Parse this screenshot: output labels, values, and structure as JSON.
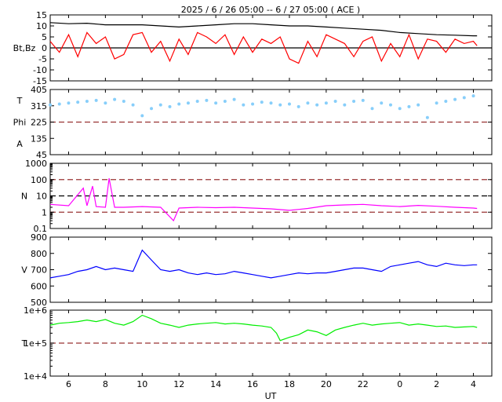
{
  "chart_data": {
    "type": "line",
    "title": "2025  /  6 / 26   05:00 -- 6 / 27   05:00 ( ACE )",
    "xlabel": "UT",
    "x_ticks": [
      "6",
      "8",
      "10",
      "12",
      "14",
      "16",
      "18",
      "20",
      "22",
      "0",
      "2",
      "4"
    ],
    "x_tick_hours": [
      6,
      8,
      10,
      12,
      14,
      16,
      18,
      20,
      22,
      24,
      26,
      28
    ],
    "x_range_hours": [
      5,
      29
    ],
    "panels": [
      {
        "id": "mag",
        "ylabel": "Bt,Bz",
        "scale": "linear",
        "ylim": [
          -15,
          15
        ],
        "y_ticks": [
          "15",
          "10",
          "5",
          "0",
          "-5",
          "-10",
          "-15"
        ],
        "y_tick_values": [
          15,
          10,
          5,
          0,
          -5,
          -10,
          -15
        ],
        "reference_lines": [
          {
            "y": 0,
            "style": "solid",
            "color": "#000000"
          }
        ],
        "series": [
          {
            "name": "Bt",
            "color": "#000000",
            "x": [
              5,
              6,
              7,
              8,
              9,
              10,
              11,
              12,
              13,
              14,
              15,
              16,
              17,
              18,
              19,
              20,
              21,
              22,
              23,
              24,
              25,
              26,
              27,
              28,
              28.2
            ],
            "y": [
              11.5,
              11,
              11.2,
              10.5,
              10.5,
              10.5,
              10,
              9.5,
              10,
              10.5,
              11,
              11,
              10.5,
              10,
              10,
              9.5,
              9,
              8.5,
              8,
              7,
              6.5,
              6,
              5.8,
              5.5,
              5.5
            ]
          },
          {
            "name": "Bz",
            "color": "#ff0000",
            "x": [
              5,
              5.5,
              6,
              6.5,
              7,
              7.5,
              8,
              8.5,
              9,
              9.5,
              10,
              10.5,
              11,
              11.5,
              12,
              12.5,
              13,
              13.5,
              14,
              14.5,
              15,
              15.5,
              16,
              16.5,
              17,
              17.5,
              18,
              18.5,
              19,
              19.5,
              20,
              20.5,
              21,
              21.5,
              22,
              22.5,
              23,
              23.5,
              24,
              24.5,
              25,
              25.5,
              26,
              26.5,
              27,
              27.5,
              28,
              28.2
            ],
            "y": [
              3,
              -2,
              6,
              -4,
              7,
              2,
              5,
              -5,
              -3,
              6,
              7,
              -2,
              3,
              -6,
              4,
              -3,
              7,
              5,
              2,
              6,
              -3,
              5,
              -2,
              4,
              2,
              5,
              -5,
              -7,
              3,
              -4,
              6,
              4,
              2,
              -4,
              3,
              5,
              -6,
              2,
              -4,
              6,
              -5,
              4,
              3,
              -2,
              4,
              2,
              3,
              1
            ]
          }
        ]
      },
      {
        "id": "phi",
        "ylabel_lines": [
          "T",
          "Phi",
          "A"
        ],
        "scale": "linear",
        "ylim": [
          45,
          405
        ],
        "y_ticks": [
          "405",
          "315",
          "225",
          "135",
          "45"
        ],
        "y_tick_values": [
          405,
          315,
          225,
          135,
          45
        ],
        "reference_lines": [
          {
            "y": 225,
            "style": "dashed",
            "color": "#993333"
          }
        ],
        "series": [
          {
            "name": "Phi",
            "color": "#87cefa",
            "marker": "dot",
            "x": [
              5,
              5.5,
              6,
              6.5,
              7,
              7.5,
              8,
              8.5,
              9,
              9.5,
              10,
              10.5,
              11,
              11.5,
              12,
              12.5,
              13,
              13.5,
              14,
              14.5,
              15,
              15.5,
              16,
              16.5,
              17,
              17.5,
              18,
              18.5,
              19,
              19.5,
              20,
              20.5,
              21,
              21.5,
              22,
              22.5,
              23,
              23.5,
              24,
              24.5,
              25,
              25.5,
              26,
              26.5,
              27,
              27.5,
              28
            ],
            "y": [
              320,
              325,
              330,
              335,
              340,
              345,
              330,
              350,
              340,
              320,
              260,
              300,
              320,
              310,
              325,
              330,
              340,
              345,
              330,
              340,
              350,
              320,
              325,
              335,
              330,
              320,
              325,
              310,
              330,
              320,
              330,
              340,
              320,
              340,
              345,
              300,
              330,
              320,
              300,
              310,
              320,
              250,
              330,
              340,
              350,
              360,
              370
            ]
          }
        ]
      },
      {
        "id": "density",
        "ylabel": "N",
        "scale": "log",
        "ylim": [
          0.1,
          1000
        ],
        "y_ticks": [
          "1000",
          "100",
          "10",
          "1",
          "0.1"
        ],
        "y_tick_values": [
          1000,
          100,
          10,
          1,
          0.1
        ],
        "reference_lines": [
          {
            "y": 100,
            "style": "dashed",
            "color": "#993333"
          },
          {
            "y": 10,
            "style": "dashed",
            "color": "#000000"
          },
          {
            "y": 1,
            "style": "dashed",
            "color": "#993333"
          }
        ],
        "series": [
          {
            "name": "N",
            "color": "#ff00ff",
            "x": [
              5,
              6,
              6.8,
              7,
              7.3,
              7.5,
              8,
              8.2,
              8.5,
              9,
              10,
              11,
              11.7,
              12,
              13,
              14,
              15,
              16,
              17,
              18,
              19,
              20,
              21,
              22,
              23,
              24,
              25,
              26,
              27,
              28,
              28.2
            ],
            "y": [
              3,
              2.5,
              30,
              2.5,
              40,
              2.2,
              2,
              120,
              2,
              2,
              2.2,
              2,
              0.3,
              1.8,
              2,
              1.9,
              2,
              1.8,
              1.6,
              1.3,
              1.7,
              2.5,
              2.8,
              3,
              2.5,
              2.2,
              2.6,
              2.3,
              2,
              1.8,
              1.7
            ]
          }
        ]
      },
      {
        "id": "speed",
        "ylabel": "V",
        "scale": "linear",
        "ylim": [
          500,
          900
        ],
        "y_ticks": [
          "900",
          "800",
          "700",
          "600",
          "500"
        ],
        "y_tick_values": [
          900,
          800,
          700,
          600,
          500
        ],
        "reference_lines": [],
        "series": [
          {
            "name": "V",
            "color": "#0000ff",
            "x": [
              5,
              5.5,
              6,
              6.5,
              7,
              7.5,
              8,
              8.5,
              9,
              9.5,
              10,
              10.5,
              11,
              11.5,
              12,
              12.5,
              13,
              13.5,
              14,
              14.5,
              15,
              15.5,
              16,
              16.5,
              17,
              17.5,
              18,
              18.5,
              19,
              19.5,
              20,
              20.5,
              21,
              21.5,
              22,
              22.5,
              23,
              23.5,
              24,
              24.5,
              25,
              25.5,
              26,
              26.5,
              27,
              27.5,
              28,
              28.2
            ],
            "y": [
              650,
              660,
              670,
              690,
              700,
              720,
              700,
              710,
              700,
              690,
              820,
              760,
              700,
              690,
              700,
              680,
              670,
              680,
              670,
              675,
              690,
              680,
              670,
              660,
              650,
              660,
              670,
              680,
              675,
              680,
              680,
              690,
              700,
              710,
              710,
              700,
              690,
              720,
              730,
              740,
              750,
              730,
              720,
              740,
              730,
              725,
              730,
              730
            ]
          }
        ]
      },
      {
        "id": "temperature",
        "ylabel": "T",
        "scale": "log",
        "ylim": [
          10000,
          1000000
        ],
        "y_ticks": [
          "1e+6",
          "1e+5",
          "1e+4"
        ],
        "y_tick_values": [
          1000000,
          100000,
          10000
        ],
        "reference_lines": [
          {
            "y": 100000,
            "style": "dashed",
            "color": "#993333"
          }
        ],
        "series": [
          {
            "name": "T",
            "color": "#00ee00",
            "x": [
              5,
              5.5,
              6,
              6.5,
              7,
              7.5,
              8,
              8.5,
              9,
              9.5,
              10,
              10.5,
              11,
              11.5,
              12,
              12.5,
              13,
              13.5,
              14,
              14.5,
              15,
              15.5,
              16,
              16.5,
              17,
              17.3,
              17.5,
              18,
              18.5,
              19,
              19.5,
              20,
              20.5,
              21,
              21.5,
              22,
              22.5,
              23,
              23.5,
              24,
              24.5,
              25,
              25.5,
              26,
              26.5,
              27,
              27.5,
              28,
              28.2
            ],
            "y": [
              350000,
              400000,
              420000,
              450000,
              500000,
              450000,
              520000,
              400000,
              350000,
              450000,
              700000,
              550000,
              400000,
              350000,
              300000,
              350000,
              380000,
              400000,
              420000,
              380000,
              400000,
              380000,
              350000,
              330000,
              300000,
              200000,
              120000,
              150000,
              180000,
              250000,
              220000,
              170000,
              250000,
              300000,
              350000,
              400000,
              350000,
              380000,
              400000,
              420000,
              350000,
              380000,
              350000,
              320000,
              330000,
              300000,
              310000,
              320000,
              300000
            ]
          }
        ]
      }
    ]
  }
}
